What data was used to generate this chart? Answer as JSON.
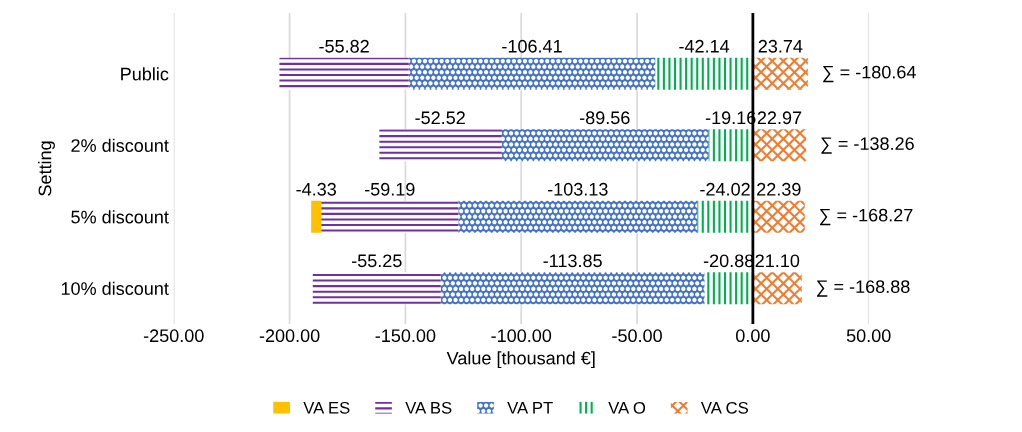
{
  "chart_data": {
    "type": "bar",
    "orientation": "horizontal",
    "stacked": true,
    "xlabel": "Value [thousand €]",
    "ylabel": "Setting",
    "categories": [
      "Public",
      "2% discount",
      "5% discount",
      "10% discount"
    ],
    "series": [
      {
        "name": "VA O",
        "color": "#00b050",
        "values": [
          -42.14,
          -19.16,
          -24.02,
          -20.88
        ],
        "value_labels": [
          "-42.14",
          "-19.16",
          "-24.02",
          "-20.88"
        ]
      },
      {
        "name": "VA PT",
        "color": "#4472c4",
        "values": [
          -106.41,
          -89.56,
          -103.13,
          -113.85
        ],
        "value_labels": [
          "-106.41",
          "-89.56",
          "-103.13",
          "-113.85"
        ]
      },
      {
        "name": "VA BS",
        "color": "#7030a0",
        "values": [
          -55.82,
          -52.52,
          -59.19,
          -55.25
        ],
        "value_labels": [
          "-55.82",
          "-52.52",
          "-59.19",
          "-55.25"
        ]
      },
      {
        "name": "VA ES",
        "color": "#ffc000",
        "values": [
          null,
          null,
          -4.33,
          null
        ],
        "value_labels": [
          null,
          null,
          "-4.33",
          null
        ]
      },
      {
        "name": "VA CS",
        "color": "#ed7d31",
        "values": [
          23.74,
          22.97,
          22.39,
          21.1
        ],
        "value_labels": [
          "23.74",
          "22.97",
          "22.39",
          "21.10"
        ]
      }
    ],
    "totals": [
      "∑ = -180.64",
      "∑ = -138.26",
      "∑ = -168.27",
      "∑ = -168.88"
    ],
    "xlim": [
      -250,
      50
    ],
    "xticks": [
      {
        "value": -250,
        "label": "-250.00"
      },
      {
        "value": -200,
        "label": "-200.00"
      },
      {
        "value": -150,
        "label": "-150.00"
      },
      {
        "value": -100,
        "label": "-100.00"
      },
      {
        "value": -50,
        "label": "-50.00"
      },
      {
        "value": 0,
        "label": "0.00"
      },
      {
        "value": 50,
        "label": "50.00"
      }
    ],
    "ref_lines": [
      {
        "axis": "x",
        "value": 0,
        "color": "#000000",
        "line_style": "solid"
      }
    ],
    "grid": "x",
    "legend": "bottom"
  }
}
